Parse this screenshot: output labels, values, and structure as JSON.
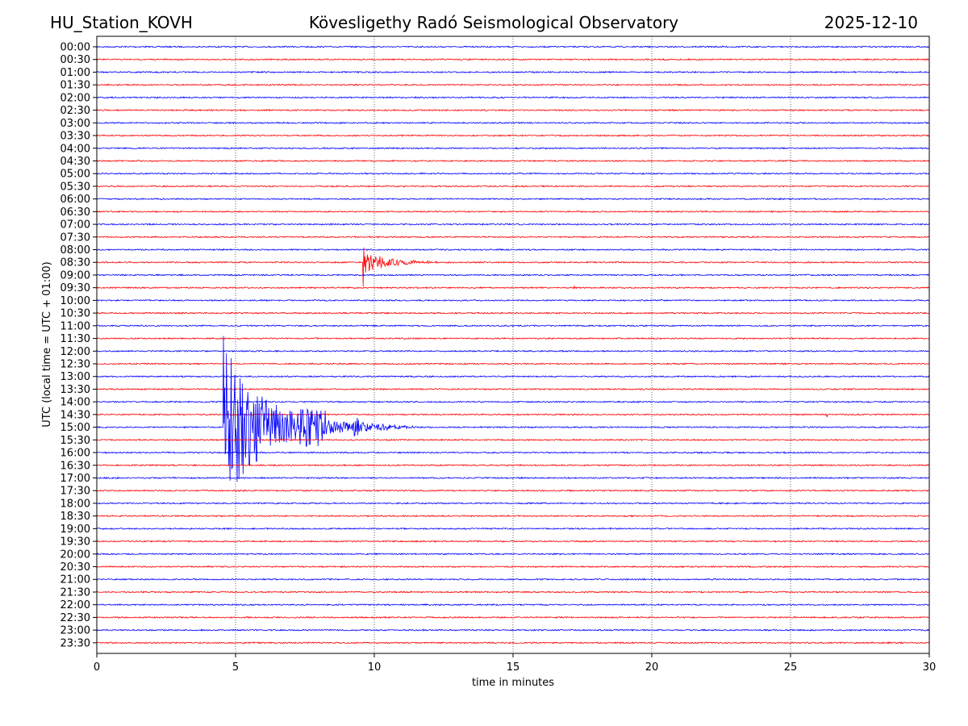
{
  "header": {
    "station": "HU_Station_KOVH",
    "title": "Kövesligethy Radó Seismological Observatory",
    "date": "2025-12-10"
  },
  "chart_data": {
    "type": "line",
    "title": "Kövesligethy Radó Seismological Observatory",
    "xlabel": "time in minutes",
    "ylabel": "UTC (local time = UTC + 01:00)",
    "xlim": [
      0,
      30
    ],
    "x_ticks": [
      "0",
      "5",
      "10",
      "15",
      "20",
      "25",
      "30"
    ],
    "grid": "vertical dotted lines at x ticks",
    "row_labels": [
      "00:00",
      "00:30",
      "01:00",
      "01:30",
      "02:00",
      "02:30",
      "03:00",
      "03:30",
      "04:00",
      "04:30",
      "05:00",
      "05:30",
      "06:00",
      "06:30",
      "07:00",
      "07:30",
      "08:00",
      "08:30",
      "09:00",
      "09:30",
      "10:00",
      "10:30",
      "11:00",
      "11:30",
      "12:00",
      "12:30",
      "13:00",
      "13:30",
      "14:00",
      "14:30",
      "15:00",
      "15:30",
      "16:00",
      "16:30",
      "17:00",
      "17:30",
      "18:00",
      "18:30",
      "19:00",
      "19:30",
      "20:00",
      "20:30",
      "21:00",
      "21:30",
      "22:00",
      "22:30",
      "23:00",
      "23:30"
    ],
    "row_colors": [
      "#0000ff",
      "#ff0000"
    ],
    "events": [
      {
        "row": "08:30",
        "start_min": 9.6,
        "end_min": 13.5,
        "peak_rows": 1.9
      },
      {
        "row": "15:00",
        "start_min": 4.55,
        "end_min": 12.0,
        "peak_rows": 11.6
      },
      {
        "row": "09:30",
        "start_min": 17.2,
        "end_min": 17.6,
        "peak_rows": 0.2
      },
      {
        "row": "14:30",
        "start_min": 26.3,
        "end_min": 26.5,
        "peak_rows": 0.2
      }
    ]
  }
}
